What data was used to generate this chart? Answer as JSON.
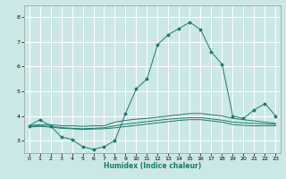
{
  "xlabel": "Humidex (Indice chaleur)",
  "xlim": [
    -0.5,
    23.5
  ],
  "ylim": [
    2.5,
    8.5
  ],
  "yticks": [
    3,
    4,
    5,
    6,
    7,
    8
  ],
  "xticks": [
    0,
    1,
    2,
    3,
    4,
    5,
    6,
    7,
    8,
    9,
    10,
    11,
    12,
    13,
    14,
    15,
    16,
    17,
    18,
    19,
    20,
    21,
    22,
    23
  ],
  "bg_color": "#cce8e6",
  "grid_color": "#ffffff",
  "line_color": "#1a7a6e",
  "line1_x": [
    0,
    1,
    2,
    3,
    4,
    5,
    6,
    7,
    8,
    9,
    10,
    11,
    12,
    13,
    14,
    15,
    16,
    17,
    18,
    19,
    20,
    21,
    22,
    23
  ],
  "line1_y": [
    3.6,
    3.85,
    3.6,
    3.15,
    3.05,
    2.75,
    2.65,
    2.75,
    3.0,
    4.1,
    5.1,
    5.5,
    6.9,
    7.3,
    7.55,
    7.8,
    7.5,
    6.6,
    6.1,
    4.0,
    3.9,
    4.25,
    4.5,
    4.0
  ],
  "line2_x": [
    0,
    1,
    2,
    3,
    4,
    5,
    6,
    7,
    8,
    9,
    10,
    11,
    12,
    13,
    14,
    15,
    16,
    17,
    18,
    19,
    20,
    21,
    22,
    23
  ],
  "line2_y": [
    3.6,
    3.65,
    3.65,
    3.6,
    3.6,
    3.58,
    3.6,
    3.6,
    3.75,
    3.82,
    3.87,
    3.9,
    3.95,
    4.0,
    4.05,
    4.1,
    4.1,
    4.05,
    4.0,
    3.9,
    3.85,
    3.8,
    3.75,
    3.7
  ],
  "line3_x": [
    0,
    1,
    2,
    3,
    4,
    5,
    6,
    7,
    8,
    9,
    10,
    11,
    12,
    13,
    14,
    15,
    16,
    17,
    18,
    19,
    20,
    21,
    22,
    23
  ],
  "line3_y": [
    3.55,
    3.58,
    3.55,
    3.5,
    3.48,
    3.45,
    3.47,
    3.48,
    3.52,
    3.57,
    3.62,
    3.67,
    3.72,
    3.77,
    3.82,
    3.85,
    3.85,
    3.8,
    3.75,
    3.65,
    3.62,
    3.6,
    3.6,
    3.6
  ],
  "line4_x": [
    0,
    1,
    2,
    3,
    4,
    5,
    6,
    7,
    8,
    9,
    10,
    11,
    12,
    13,
    14,
    15,
    16,
    17,
    18,
    19,
    20,
    21,
    22,
    23
  ],
  "line4_y": [
    3.58,
    3.6,
    3.57,
    3.53,
    3.5,
    3.48,
    3.5,
    3.52,
    3.6,
    3.67,
    3.72,
    3.77,
    3.82,
    3.87,
    3.9,
    3.93,
    3.93,
    3.88,
    3.83,
    3.75,
    3.72,
    3.7,
    3.68,
    3.66
  ]
}
